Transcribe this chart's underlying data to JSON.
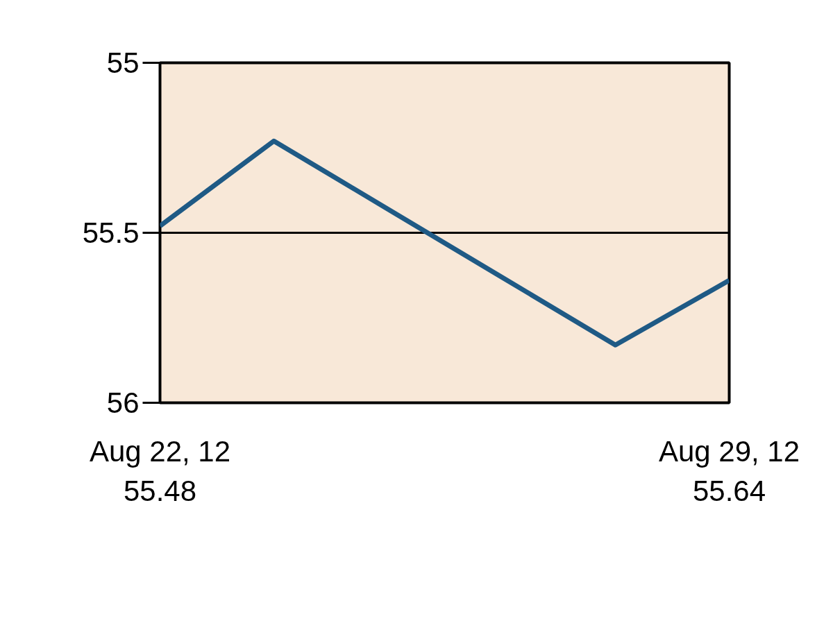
{
  "chart_data": {
    "type": "line",
    "categories": [
      "Aug 22, 12",
      null,
      null,
      null,
      null,
      "Aug 29, 12"
    ],
    "series": [
      {
        "color": "#1f5a85",
        "values": [
          55.48,
          55.23,
          55.43,
          55.63,
          55.83,
          55.64
        ],
        "value_labels": [
          "55.48",
          null,
          null,
          null,
          null,
          "55.64"
        ]
      }
    ],
    "ylim": [
      56,
      55
    ],
    "yticks": [
      55,
      55.5,
      56
    ],
    "grid": "y",
    "marker": "none",
    "line_style": "solid"
  }
}
